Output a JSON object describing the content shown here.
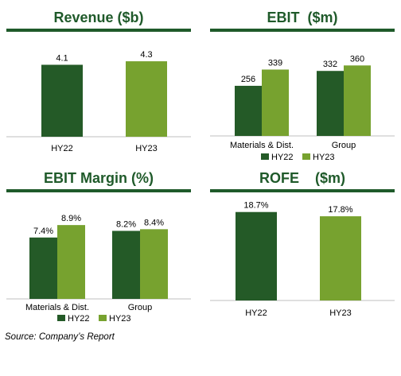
{
  "colors": {
    "hy22": "#245a27",
    "hy23": "#77a22f",
    "title": "#1f5a2a"
  },
  "source": "Source: Company’s Report",
  "chart_data": [
    {
      "id": "revenue",
      "type": "bar",
      "title": "Revenue ($b)",
      "categories": [
        "HY22",
        "HY23"
      ],
      "values": [
        4.1,
        4.3
      ],
      "labels": [
        "4.1",
        "4.3"
      ],
      "ylim": [
        0,
        5.3
      ],
      "legend": null
    },
    {
      "id": "ebit",
      "type": "bar",
      "title": "EBIT  ($m)",
      "categories": [
        "Materials & Dist.",
        "Group"
      ],
      "series": [
        {
          "name": "HY22",
          "values": [
            256,
            332
          ],
          "labels": [
            "256",
            "332"
          ]
        },
        {
          "name": "HY23",
          "values": [
            339,
            360
          ],
          "labels": [
            "339",
            "360"
          ]
        }
      ],
      "ylim": [
        0,
        475
      ],
      "legend": "bottom"
    },
    {
      "id": "ebit_margin",
      "type": "bar",
      "title": "EBIT Margin (%)",
      "categories": [
        "Materials & Dist.",
        "Group"
      ],
      "series": [
        {
          "name": "HY22",
          "values": [
            7.4,
            8.2
          ],
          "labels": [
            "7.4%",
            "8.2%"
          ]
        },
        {
          "name": "HY23",
          "values": [
            8.9,
            8.4
          ],
          "labels": [
            "8.9%",
            "8.4%"
          ]
        }
      ],
      "ylim": [
        0,
        11.5
      ],
      "legend": "bottom"
    },
    {
      "id": "rofe",
      "type": "bar",
      "title": "ROFE    ($m)",
      "categories": [
        "HY22",
        "HY23"
      ],
      "values": [
        18.7,
        17.8
      ],
      "labels": [
        "18.7%",
        "17.8%"
      ],
      "ylim": [
        0,
        20.5
      ],
      "legend": null
    }
  ]
}
